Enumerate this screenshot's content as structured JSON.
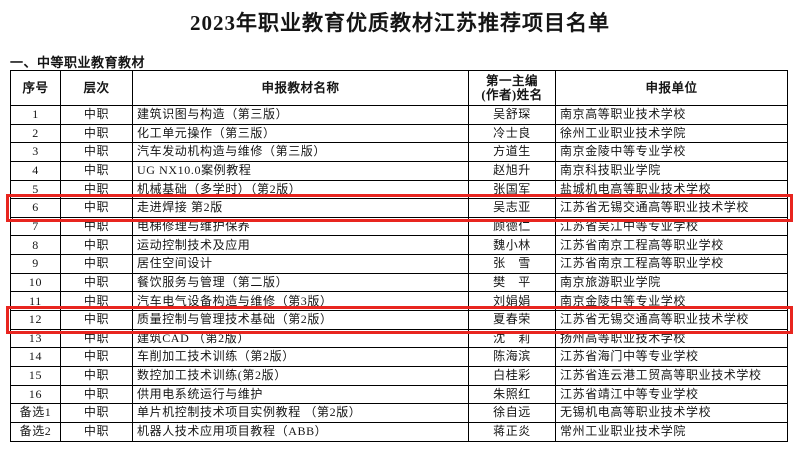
{
  "page": {
    "title": "2023年职业教育优质教材江苏推荐项目名单",
    "section_heading": "一、中等职业教育教材"
  },
  "highlight_color": "#e8251f",
  "table": {
    "columns": [
      {
        "key": "no",
        "label": "序号"
      },
      {
        "key": "level",
        "label": "层次"
      },
      {
        "key": "title",
        "label": "申报教材名称"
      },
      {
        "key": "author",
        "label": "第一主编\n(作者)姓名"
      },
      {
        "key": "unit",
        "label": "申报单位"
      }
    ],
    "rows": [
      {
        "no": "1",
        "level": "中职",
        "title": "建筑识图与构造（第三版）",
        "author": "吴舒琛",
        "unit": "南京高等职业技术学校",
        "highlighted": false
      },
      {
        "no": "2",
        "level": "中职",
        "title": "化工单元操作（第三版）",
        "author": "冷士良",
        "unit": "徐州工业职业技术学院",
        "highlighted": false
      },
      {
        "no": "3",
        "level": "中职",
        "title": "汽车发动机构造与维修（第三版）",
        "author": "方道生",
        "unit": "南京金陵中等专业学校",
        "highlighted": false
      },
      {
        "no": "4",
        "level": "中职",
        "title": "UG NX10.0案例教程",
        "author": "赵旭升",
        "unit": "南京科技职业学院",
        "highlighted": false
      },
      {
        "no": "5",
        "level": "中职",
        "title": "机械基础（多学时）（第2版）",
        "author": "张国军",
        "unit": "盐城机电高等职业技术学校",
        "highlighted": false
      },
      {
        "no": "6",
        "level": "中职",
        "title": "走进焊接  第2版",
        "author": "吴志亚",
        "unit": "江苏省无锡交通高等职业技术学校",
        "highlighted": true
      },
      {
        "no": "7",
        "level": "中职",
        "title": "电梯修理与维护保养",
        "author": "顾德仁",
        "unit": "江苏省吴江中等专业学校",
        "highlighted": false
      },
      {
        "no": "8",
        "level": "中职",
        "title": "运动控制技术及应用",
        "author": "魏小林",
        "unit": "江苏省南京工程高等职业学校",
        "highlighted": false
      },
      {
        "no": "9",
        "level": "中职",
        "title": "居住空间设计",
        "author": "张　雪",
        "unit": "江苏省南京工程高等职业学校",
        "highlighted": false
      },
      {
        "no": "10",
        "level": "中职",
        "title": "餐饮服务与管理（第二版）",
        "author": "樊　平",
        "unit": "南京旅游职业学院",
        "highlighted": false
      },
      {
        "no": "11",
        "level": "中职",
        "title": "汽车电气设备构造与维修（第3版）",
        "author": "刘娟娟",
        "unit": "南京金陵中等专业学校",
        "highlighted": false
      },
      {
        "no": "12",
        "level": "中职",
        "title": "质量控制与管理技术基础（第2版）",
        "author": "夏春荣",
        "unit": "江苏省无锡交通高等职业技术学校",
        "highlighted": true
      },
      {
        "no": "13",
        "level": "中职",
        "title": "建筑CAD （第2版）",
        "author": "沈　莉",
        "unit": "扬州高等职业技术学校",
        "highlighted": false
      },
      {
        "no": "14",
        "level": "中职",
        "title": "车削加工技术训练（第2版）",
        "author": "陈海滨",
        "unit": "江苏省海门中等专业学校",
        "highlighted": false
      },
      {
        "no": "15",
        "level": "中职",
        "title": "数控加工技术训练(第2版）",
        "author": "白桂彩",
        "unit": "江苏省连云港工贸高等职业技术学校",
        "highlighted": false
      },
      {
        "no": "16",
        "level": "中职",
        "title": "供用电系统运行与维护",
        "author": "朱照红",
        "unit": "江苏省靖江中等专业学校",
        "highlighted": false
      },
      {
        "no": "备选1",
        "level": "中职",
        "title": "单片机控制技术项目实例教程 （第2版）",
        "author": "徐自远",
        "unit": "无锡机电高等职业技术学校",
        "highlighted": false
      },
      {
        "no": "备选2",
        "level": "中职",
        "title": "机器人技术应用项目教程（ABB）",
        "author": "蒋正炎",
        "unit": "常州工业职业技术学院",
        "highlighted": false
      }
    ]
  }
}
